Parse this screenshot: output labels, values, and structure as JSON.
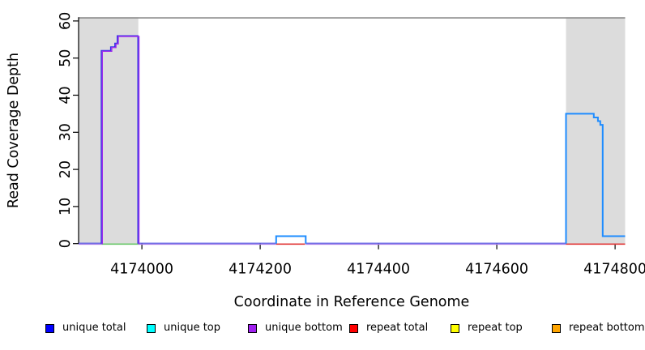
{
  "figure": {
    "background": "#FFFFFF",
    "xlabel": "Coordinate in Reference Genome",
    "ylabel": "Read Coverage Depth"
  },
  "legend": {
    "swatch_border": "#000000",
    "items": [
      {
        "label": "unique total",
        "color": "#0000FF"
      },
      {
        "label": "unique top",
        "color": "#00FFFF"
      },
      {
        "label": "unique bottom",
        "color": "#A020F0"
      },
      {
        "label": "repeat total",
        "color": "#FF0000"
      },
      {
        "label": "repeat top",
        "color": "#FFFF00"
      },
      {
        "label": "repeat bottom",
        "color": "#FFA500"
      }
    ]
  },
  "chart_data": {
    "type": "line",
    "style": "step",
    "title": "",
    "xlabel": "Coordinate in Reference Genome",
    "ylabel": "Read Coverage Depth",
    "xlim": [
      4173893,
      4174817
    ],
    "ylim": [
      0,
      61
    ],
    "x_ticks": [
      4174000,
      4174200,
      4174400,
      4174600,
      4174800
    ],
    "y_ticks": [
      0,
      10,
      20,
      30,
      40,
      50,
      60
    ],
    "grid": false,
    "axis_color": "#000000",
    "shaded_regions": [
      {
        "name": "repeat-region-left",
        "x0": 4173893,
        "x1": 4173994,
        "color": "#DCDCDC"
      },
      {
        "name": "repeat-region-right",
        "x0": 4174717,
        "x1": 4174817,
        "color": "#DCDCDC"
      }
    ],
    "top_boundary_line": {
      "y": 61,
      "color": "#8C8C8C"
    },
    "series": [
      {
        "name": "unique-coverage-left-peak",
        "kind": "step-path",
        "colors": [
          "#2D2DE8",
          "#9D2EEB"
        ],
        "max_depth": 56,
        "points": [
          [
            4173932,
            0
          ],
          [
            4173932,
            52
          ],
          [
            4173948,
            52
          ],
          [
            4173948,
            53
          ],
          [
            4173955,
            53
          ],
          [
            4173955,
            54
          ],
          [
            4173959,
            54
          ],
          [
            4173959,
            56
          ],
          [
            4173994,
            56
          ],
          [
            4173994,
            0
          ]
        ]
      },
      {
        "name": "unique-coverage-small-bump",
        "kind": "step-path",
        "colors": [
          "#1E8CFF"
        ],
        "max_depth": 2,
        "points": [
          [
            4174227,
            0
          ],
          [
            4174227,
            2
          ],
          [
            4174277,
            2
          ],
          [
            4174277,
            0
          ]
        ]
      },
      {
        "name": "unique-coverage-right-peak",
        "kind": "step-path",
        "colors": [
          "#1E8CFF"
        ],
        "max_depth": 35,
        "points": [
          [
            4174717,
            0
          ],
          [
            4174717,
            35
          ],
          [
            4174764,
            35
          ],
          [
            4174764,
            34
          ],
          [
            4174771,
            34
          ],
          [
            4174771,
            33
          ],
          [
            4174775,
            33
          ],
          [
            4174775,
            32
          ],
          [
            4174779,
            32
          ],
          [
            4174779,
            2
          ],
          [
            4174817,
            2
          ]
        ]
      },
      {
        "name": "zero-baseline-unique",
        "kind": "zero-segments",
        "colors": [
          "#4646E0",
          "#A87FE8"
        ],
        "depth": 0,
        "segments": [
          [
            4173893,
            4173932
          ],
          [
            4173994,
            4174227
          ],
          [
            4174277,
            4174717
          ]
        ]
      },
      {
        "name": "zero-line-green",
        "kind": "zero-segments",
        "colors": [
          "#6DC96D"
        ],
        "depth": 0,
        "segments": [
          [
            4173932,
            4173994
          ]
        ]
      },
      {
        "name": "zero-line-red",
        "kind": "zero-segments",
        "colors": [
          "#E23B3B"
        ],
        "depth": 0,
        "segments": [
          [
            4174227,
            4174276
          ],
          [
            4174717,
            4174817
          ]
        ]
      }
    ]
  }
}
